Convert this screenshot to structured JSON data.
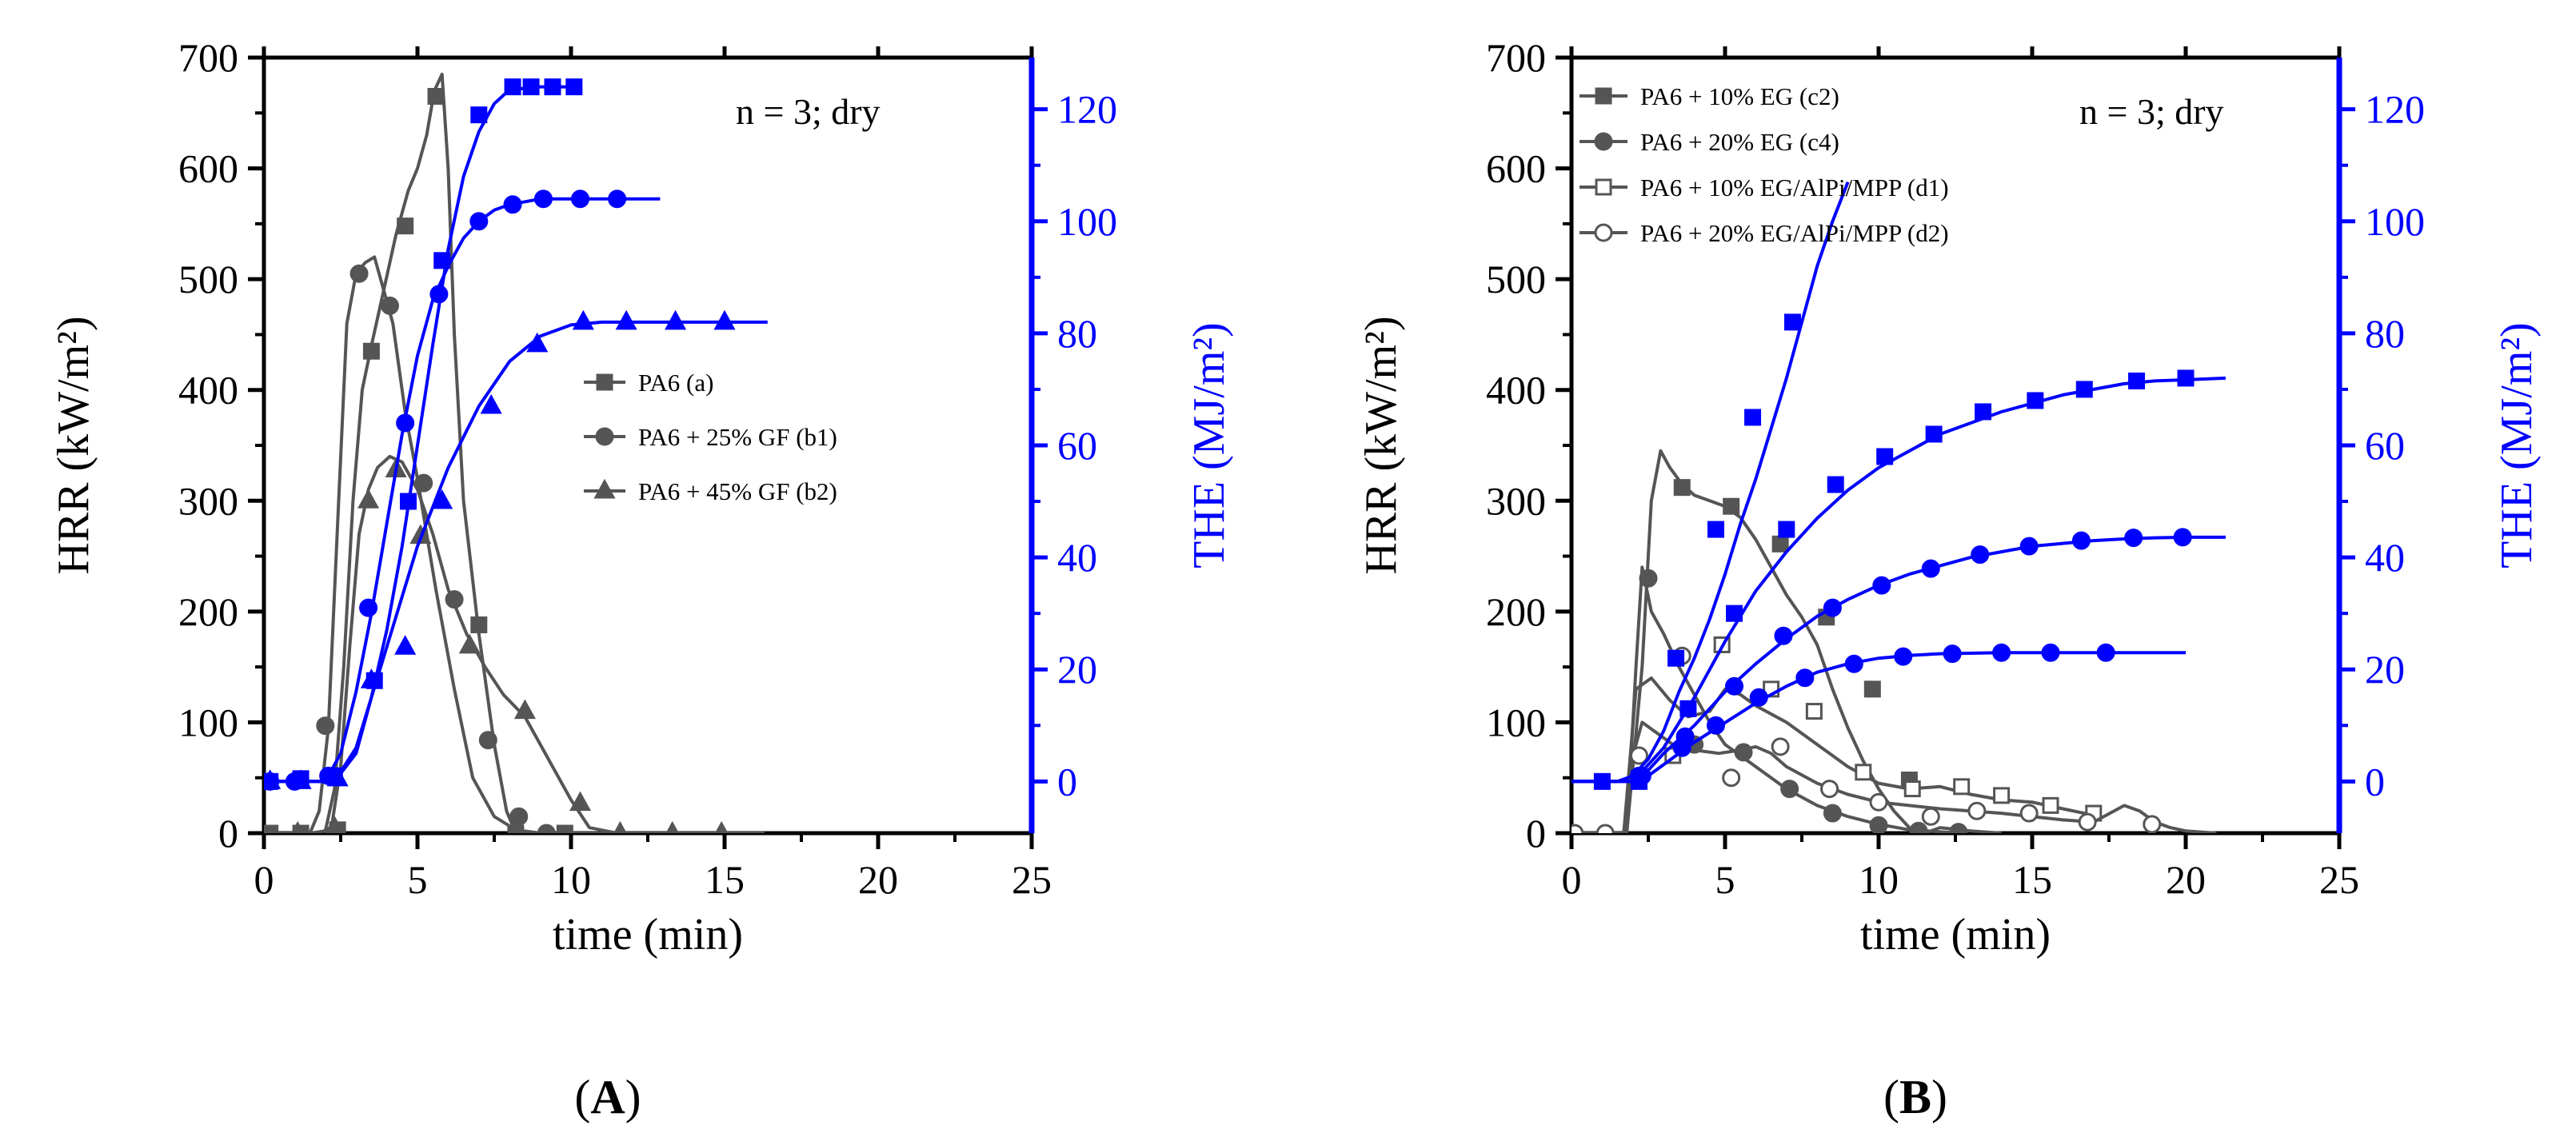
{
  "chart_data": [
    {
      "type": "line",
      "panel_label": "(A)",
      "panel_open": "(",
      "panel_letter": "A",
      "panel_close": ")",
      "annotation": "n = 3; dry",
      "xlabel": "time (min)",
      "ylabel_left": "HRR (kW/m²)",
      "ylabel_right": "THE (MJ/m²)",
      "xlim": [
        0,
        25
      ],
      "ylim_left": [
        0,
        700
      ],
      "ylim_right": [
        -9.23,
        129.23
      ],
      "x_ticks": [
        0,
        5,
        10,
        15,
        20,
        25
      ],
      "y_ticks_left": [
        0,
        100,
        200,
        300,
        400,
        500,
        600,
        700
      ],
      "y_ticks_right": [
        0,
        20,
        40,
        60,
        80,
        100,
        120
      ],
      "hrr_color": "#555555",
      "the_color": "#0000ff",
      "hrr_series": [
        {
          "name": "PA6 (a)",
          "marker": "square",
          "filled": true,
          "x": [
            0,
            1.5,
            2,
            2.3,
            2.6,
            2.9,
            3.2,
            3.5,
            3.9,
            4.3,
            4.7,
            5.0,
            5.3,
            5.55,
            5.8,
            6.0,
            6.2,
            6.5,
            7.0,
            7.5,
            7.9,
            8.2,
            9,
            10,
            12,
            14,
            16.3
          ],
          "y": [
            0,
            0,
            2,
            40,
            150,
            300,
            400,
            440,
            490,
            540,
            580,
            600,
            630,
            670,
            685,
            600,
            450,
            300,
            180,
            80,
            20,
            0,
            0,
            0,
            0,
            0,
            0
          ],
          "marker_x": [
            0.2,
            1.2,
            2.4,
            3.5,
            4.6,
            5.6,
            7.0,
            8.2,
            9.8
          ],
          "marker_y": [
            0,
            0,
            3,
            435,
            548,
            665,
            188,
            0,
            0
          ]
        },
        {
          "name": "PA6 + 25% GF (b1)",
          "marker": "circle",
          "filled": true,
          "x": [
            0,
            1.5,
            1.8,
            2.1,
            2.4,
            2.7,
            3.0,
            3.3,
            3.6,
            3.9,
            4.2,
            4.6,
            5.0,
            5.6,
            6.2,
            6.8,
            7.5,
            8.2,
            9.0,
            10.0,
            11.7
          ],
          "y": [
            0,
            0,
            20,
            95,
            280,
            460,
            505,
            515,
            520,
            490,
            460,
            380,
            320,
            220,
            130,
            50,
            15,
            3,
            0,
            0,
            0
          ],
          "marker_x": [
            2.0,
            3.1,
            4.1,
            5.2,
            6.2,
            7.3,
            8.3,
            9.2
          ],
          "marker_y": [
            97,
            505,
            476,
            316,
            211,
            84,
            15,
            0
          ]
        },
        {
          "name": "PA6 + 45% GF (b2)",
          "marker": "triangle",
          "filled": true,
          "x": [
            0,
            1.8,
            2.2,
            2.5,
            2.8,
            3.1,
            3.4,
            3.7,
            4.1,
            4.5,
            5.0,
            5.5,
            6.0,
            6.6,
            7.2,
            7.8,
            8.5,
            9.2,
            10.0,
            10.6,
            11.5,
            14,
            16.3
          ],
          "y": [
            0,
            0,
            5,
            60,
            170,
            270,
            310,
            330,
            340,
            335,
            310,
            270,
            220,
            180,
            150,
            125,
            105,
            70,
            30,
            5,
            0,
            0,
            0
          ],
          "marker_x": [
            1.1,
            2.3,
            3.4,
            4.3,
            5.1,
            6.7,
            8.5,
            10.3,
            11.6,
            13.3,
            14.9
          ],
          "marker_y": [
            0,
            5,
            300,
            328,
            268,
            169,
            110,
            27,
            0,
            0,
            0
          ]
        }
      ],
      "the_series": [
        {
          "name": "PA6 (a) THE",
          "marker": "square",
          "x": [
            0,
            2.3,
            3.0,
            3.5,
            4.0,
            4.5,
            5.0,
            5.5,
            6.0,
            6.5,
            7.0,
            7.5,
            8.0,
            9,
            10.3
          ],
          "y": [
            0,
            0,
            5,
            15,
            27,
            42,
            60,
            78,
            95,
            108,
            116,
            121,
            123.5,
            124,
            124
          ],
          "marker_x": [
            0.2,
            1.2,
            2.3,
            3.6,
            4.7,
            5.8,
            7.0,
            8.1,
            8.7,
            9.4,
            10.1
          ],
          "marker_y": [
            0,
            0.5,
            1,
            18,
            50,
            93,
            119,
            124,
            124,
            124,
            124
          ]
        },
        {
          "name": "PA6 + 25% GF (b1) THE",
          "marker": "circle",
          "x": [
            0,
            2.0,
            2.5,
            3.0,
            3.5,
            4.0,
            4.5,
            5.0,
            5.5,
            6.0,
            6.5,
            7.0,
            7.5,
            8.0,
            9,
            10,
            11,
            12.9
          ],
          "y": [
            0,
            0,
            5,
            16,
            30,
            46,
            62,
            76,
            86,
            92,
            97,
            100,
            102,
            103,
            104,
            104,
            104,
            104
          ],
          "marker_x": [
            0.2,
            1.0,
            2.1,
            3.4,
            4.6,
            5.7,
            7.0,
            8.1,
            9.1,
            10.3,
            11.5
          ],
          "marker_y": [
            0,
            0,
            1,
            31,
            64,
            87,
            100,
            103,
            104,
            104,
            104
          ]
        },
        {
          "name": "PA6 + 45% GF (b2) THE",
          "marker": "triangle",
          "x": [
            0,
            2.3,
            3.0,
            3.5,
            4.0,
            5.0,
            6.0,
            7.0,
            8.0,
            9.0,
            10.0,
            11.0,
            12,
            16.4
          ],
          "y": [
            0,
            0,
            6,
            15,
            24,
            42,
            56,
            67,
            75,
            79.5,
            81.5,
            82,
            82,
            82
          ],
          "marker_x": [
            0.2,
            1.2,
            2.4,
            3.5,
            4.6,
            5.8,
            7.4,
            8.9,
            10.4,
            11.8,
            13.4,
            15.0
          ],
          "marker_y": [
            0,
            0,
            0.5,
            18,
            24,
            50,
            67,
            78,
            82,
            82,
            82,
            82
          ]
        }
      ]
    },
    {
      "type": "line",
      "panel_label": "(B)",
      "panel_open": "(",
      "panel_letter": "B",
      "panel_close": ")",
      "annotation": "n = 3; dry",
      "xlabel": "time (min)",
      "ylabel_left": "HRR (kW/m²)",
      "ylabel_right": "THE (MJ/m²)",
      "xlim": [
        0,
        25
      ],
      "ylim_left": [
        0,
        700
      ],
      "ylim_right": [
        -9.23,
        129.23
      ],
      "x_ticks": [
        0,
        5,
        10,
        15,
        20,
        25
      ],
      "y_ticks_left": [
        0,
        100,
        200,
        300,
        400,
        500,
        600,
        700
      ],
      "y_ticks_right": [
        0,
        20,
        40,
        60,
        80,
        100,
        120
      ],
      "hrr_color": "#555555",
      "the_color": "#0000ff",
      "hrr_series": [
        {
          "name": "PA6 + 10% EG (c2)",
          "marker": "square",
          "filled": true,
          "x": [
            0,
            1.8,
            2.3,
            2.6,
            2.9,
            3.2,
            3.6,
            4.0,
            4.5,
            5.0,
            5.5,
            6.0,
            6.5,
            7.0,
            7.5,
            8.0,
            8.5,
            9.0,
            9.5,
            10.0,
            10.5,
            11.0,
            11.5,
            12,
            13,
            14
          ],
          "y": [
            0,
            0,
            150,
            300,
            345,
            330,
            315,
            305,
            300,
            295,
            285,
            265,
            240,
            215,
            195,
            170,
            130,
            95,
            65,
            40,
            20,
            5,
            0,
            5,
            2,
            0
          ],
          "marker_x": [
            3.6,
            5.2,
            6.8,
            8.3,
            9.8,
            11.0
          ],
          "marker_y": [
            312,
            295,
            261,
            195,
            130,
            48
          ]
        },
        {
          "name": "PA6 + 20% EG (c4)",
          "marker": "circle",
          "filled": true,
          "x": [
            0,
            1.8,
            2.1,
            2.3,
            2.6,
            3.0,
            3.5,
            4.0,
            4.5,
            5.0,
            5.5,
            6.0,
            6.5,
            7.0,
            8.0,
            9.0,
            10.0,
            11.0,
            12.7
          ],
          "y": [
            0,
            0,
            150,
            240,
            200,
            180,
            150,
            125,
            100,
            80,
            70,
            60,
            50,
            40,
            25,
            15,
            8,
            3,
            0
          ],
          "marker_x": [
            2.5,
            4.0,
            5.6,
            7.1,
            8.5,
            10.0,
            11.3,
            12.6
          ],
          "marker_y": [
            230,
            80,
            73,
            40,
            18,
            7,
            2,
            1
          ]
        },
        {
          "name": "PA6 + 10% EG/AlPi/MPP (d1)",
          "marker": "square",
          "filled": false,
          "x": [
            0,
            1.7,
            2.1,
            2.6,
            3.2,
            3.8,
            4.5,
            5.0,
            5.5,
            6.0,
            7.0,
            8.0,
            9.0,
            10.0,
            11.0,
            12.0,
            13.0,
            14.0,
            15.0,
            16.0,
            17.2
          ],
          "y": [
            0,
            0,
            130,
            140,
            120,
            105,
            110,
            130,
            125,
            115,
            100,
            80,
            60,
            45,
            40,
            42,
            35,
            30,
            28,
            22,
            15
          ],
          "marker_x": [
            3.3,
            4.9,
            6.5,
            7.9,
            9.5,
            11.1,
            12.7,
            14.0,
            15.6,
            17.0
          ],
          "marker_y": [
            70,
            170,
            130,
            110,
            55,
            40,
            42,
            34,
            25,
            18
          ]
        },
        {
          "name": "PA6 + 20% EG/AlPi/MPP (d2)",
          "marker": "circle",
          "filled": false,
          "x": [
            0,
            1.7,
            2.0,
            2.3,
            2.8,
            3.3,
            4.0,
            4.8,
            5.5,
            6.0,
            6.5,
            7.0,
            8.0,
            9.0,
            10.0,
            11.0,
            12.0,
            13.0,
            14.0,
            15.0,
            16.0,
            17.0,
            18.0,
            18.5,
            19.0,
            19.5,
            20.0,
            21.0
          ],
          "y": [
            0,
            0,
            70,
            100,
            90,
            80,
            75,
            72,
            75,
            78,
            72,
            60,
            45,
            35,
            28,
            25,
            22,
            20,
            18,
            15,
            12,
            10,
            25,
            20,
            10,
            5,
            2,
            0
          ],
          "marker_x": [
            0.1,
            1.1,
            2.2,
            3.6,
            5.2,
            6.8,
            8.4,
            10.0,
            11.7,
            13.2,
            14.9,
            16.8,
            18.9
          ],
          "marker_y": [
            0,
            0,
            70,
            160,
            50,
            78,
            40,
            28,
            15,
            20,
            18,
            10,
            8
          ]
        }
      ],
      "the_series": [
        {
          "name": "PA6 + 10% EG (c2) THE",
          "marker": "square",
          "x": [
            0,
            1.5,
            2.0,
            2.5,
            3.0,
            3.5,
            4.0,
            4.5,
            5.0,
            5.5,
            6.0,
            6.5,
            7.0,
            7.5,
            8.0,
            8.5,
            9.0
          ],
          "y": [
            0,
            0,
            1,
            4,
            9,
            16,
            22,
            29,
            37,
            46,
            54,
            63,
            72,
            82,
            92,
            100,
            107
          ],
          "marker_x": [
            1.0,
            2.2,
            3.4,
            4.7,
            5.9,
            7.2
          ],
          "marker_y": [
            0,
            0.5,
            22,
            45,
            65,
            82
          ]
        },
        {
          "name": "PA6 + 10% EG/AlPi/MPP (d1) THE",
          "marker": "square",
          "x": [
            0,
            2,
            3,
            4,
            5,
            6,
            7,
            8,
            9,
            10,
            11,
            12,
            13,
            14,
            15,
            16,
            17,
            18,
            19,
            20,
            21.3
          ],
          "y": [
            0,
            0,
            6,
            15,
            25,
            34,
            41,
            47,
            52,
            56,
            59,
            62,
            64,
            66,
            67.5,
            69,
            70,
            71,
            71.5,
            71.7,
            72
          ],
          "marker_x": [
            2.2,
            3.8,
            5.3,
            7.0,
            8.6,
            10.2,
            11.8,
            13.4,
            15.1,
            16.7,
            18.4,
            20.0
          ],
          "marker_y": [
            0,
            13,
            30,
            45,
            53,
            58,
            62,
            66,
            68,
            70,
            71.5,
            72
          ]
        },
        {
          "name": "PA6 + 20% EG/AlPi/MPP (d2) THE",
          "marker": "circle",
          "x": [
            0,
            1.9,
            2.5,
            3.0,
            4.0,
            5.0,
            6.0,
            7.0,
            8.0,
            9.0,
            10.0,
            11.0,
            12.0,
            13.0,
            14.0,
            15.0,
            16.0,
            17.0,
            18.0,
            19.0,
            20.0,
            21.3
          ],
          "y": [
            0,
            0,
            2,
            5,
            10,
            16,
            21,
            25.5,
            29.5,
            32.5,
            35,
            37,
            38.5,
            40,
            41,
            42,
            42.5,
            43,
            43.3,
            43.5,
            43.6,
            43.6
          ],
          "marker_x": [
            2.2,
            3.7,
            5.3,
            6.9,
            8.5,
            10.1,
            11.7,
            13.3,
            14.9,
            16.6,
            18.3,
            19.9
          ],
          "marker_y": [
            1,
            8,
            17,
            26,
            31,
            35,
            38,
            40.5,
            42,
            43,
            43.5,
            43.6
          ]
        },
        {
          "name": "PA6 + 20% EG (c4) THE",
          "marker": "circle",
          "x": [
            0,
            1.9,
            2.5,
            3.0,
            4.0,
            5.0,
            6.0,
            7.0,
            8.0,
            9.0,
            10.0,
            11.0,
            12.0,
            14.0,
            16.0,
            18.0,
            20.0
          ],
          "y": [
            0,
            0,
            1,
            3,
            7,
            10.5,
            14,
            17,
            19.5,
            21,
            22,
            22.5,
            22.8,
            23,
            23,
            23,
            23
          ],
          "marker_x": [
            2.3,
            3.6,
            4.7,
            6.1,
            7.6,
            9.2,
            10.8,
            12.4,
            14.0,
            15.6,
            17.4
          ],
          "marker_y": [
            1,
            6,
            10,
            15,
            18.5,
            21,
            22.3,
            22.8,
            23,
            23,
            23
          ]
        }
      ]
    }
  ]
}
